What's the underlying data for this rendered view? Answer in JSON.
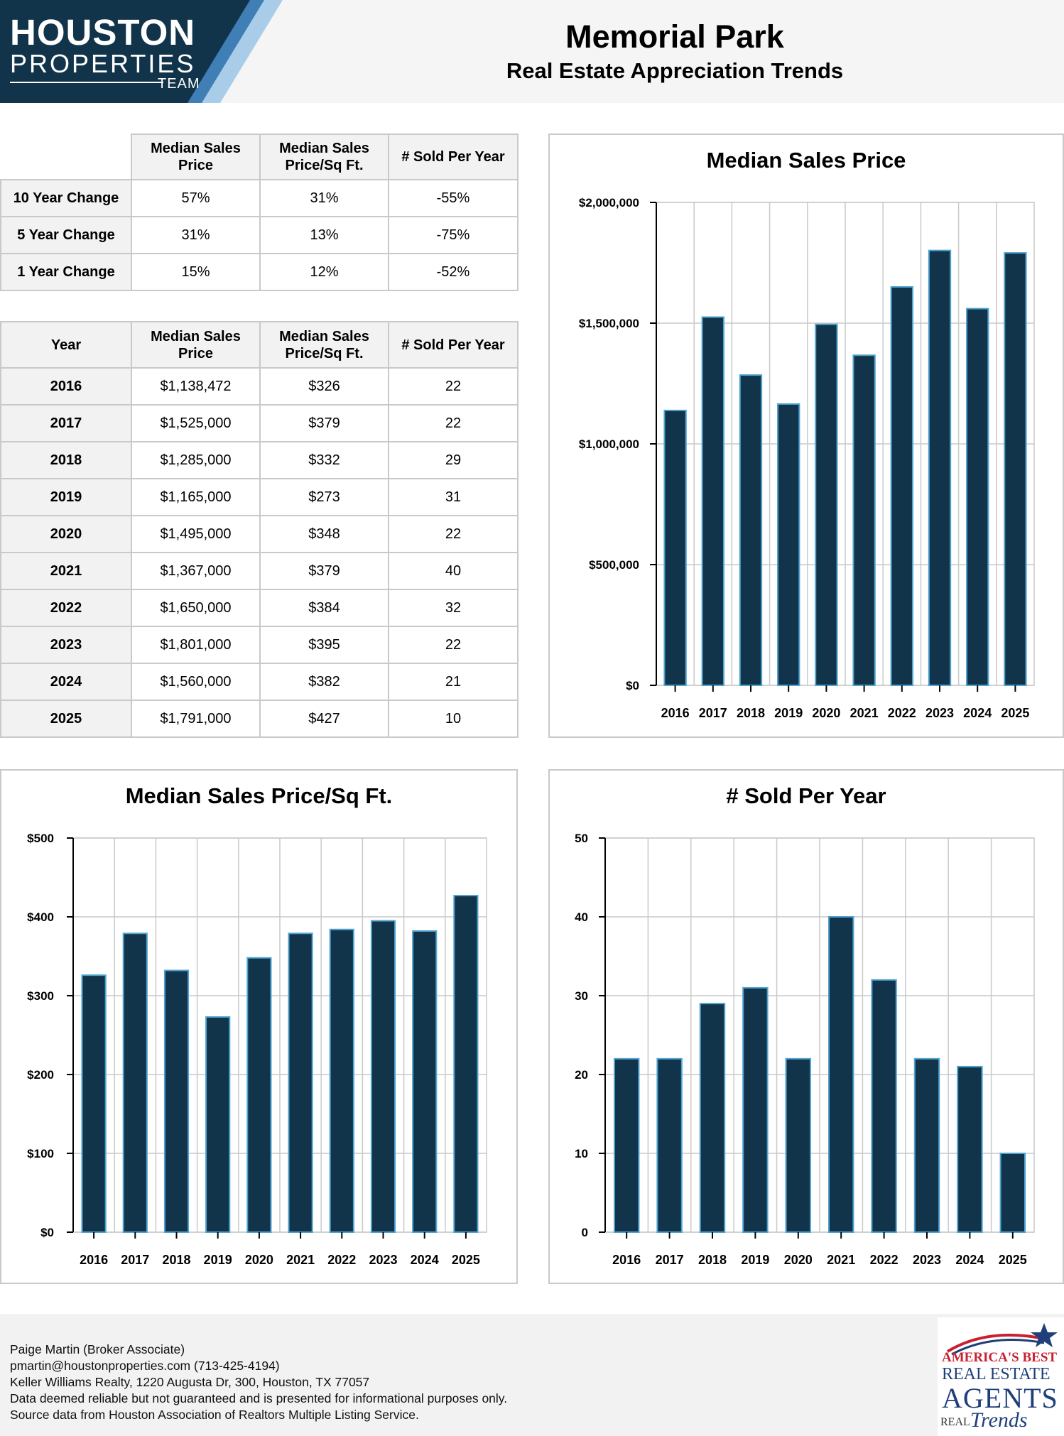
{
  "header": {
    "logo": {
      "line1": "HOUSTON",
      "line2": "PROPERTIES",
      "line3": "TEAM"
    },
    "title": "Memorial Park",
    "subtitle": "Real Estate Appreciation Trends"
  },
  "colors": {
    "bar_fill": "#12344b",
    "bar_edge": "#4fa3cf",
    "logo_navy": "#12344b",
    "logo_light": "#a9cde9"
  },
  "change_table": {
    "columns": [
      "Median Sales Price",
      "Median Sales Price/Sq Ft.",
      "# Sold Per Year"
    ],
    "rows": [
      {
        "label": "10 Year Change",
        "values": [
          "57%",
          "31%",
          "-55%"
        ]
      },
      {
        "label": "5 Year Change",
        "values": [
          "31%",
          "13%",
          "-75%"
        ]
      },
      {
        "label": "1 Year Change",
        "values": [
          "15%",
          "12%",
          "-52%"
        ]
      }
    ]
  },
  "year_table": {
    "columns": [
      "Year",
      "Median Sales Price",
      "Median Sales Price/Sq Ft.",
      "# Sold Per Year"
    ],
    "rows": [
      [
        "2016",
        "$1,138,472",
        "$326",
        "22"
      ],
      [
        "2017",
        "$1,525,000",
        "$379",
        "22"
      ],
      [
        "2018",
        "$1,285,000",
        "$332",
        "29"
      ],
      [
        "2019",
        "$1,165,000",
        "$273",
        "31"
      ],
      [
        "2020",
        "$1,495,000",
        "$348",
        "22"
      ],
      [
        "2021",
        "$1,367,000",
        "$379",
        "40"
      ],
      [
        "2022",
        "$1,650,000",
        "$384",
        "32"
      ],
      [
        "2023",
        "$1,801,000",
        "$395",
        "22"
      ],
      [
        "2024",
        "$1,560,000",
        "$382",
        "21"
      ],
      [
        "2025",
        "$1,791,000",
        "$427",
        "10"
      ]
    ]
  },
  "chart_data": [
    {
      "id": "price",
      "type": "bar",
      "title": "Median Sales Price",
      "categories": [
        "2016",
        "2017",
        "2018",
        "2019",
        "2020",
        "2021",
        "2022",
        "2023",
        "2024",
        "2025"
      ],
      "values": [
        1138472,
        1525000,
        1285000,
        1165000,
        1495000,
        1367000,
        1650000,
        1801000,
        1560000,
        1791000
      ],
      "ylim": [
        0,
        2000000
      ],
      "yticks": [
        0,
        500000,
        1000000,
        1500000,
        2000000
      ],
      "ytick_labels": [
        "$0",
        "$500,000",
        "$1,000,000",
        "$1,500,000",
        "$2,000,000"
      ],
      "grid": true
    },
    {
      "id": "ppsf",
      "type": "bar",
      "title": "Median Sales Price/Sq Ft.",
      "categories": [
        "2016",
        "2017",
        "2018",
        "2019",
        "2020",
        "2021",
        "2022",
        "2023",
        "2024",
        "2025"
      ],
      "values": [
        326,
        379,
        332,
        273,
        348,
        379,
        384,
        395,
        382,
        427
      ],
      "ylim": [
        0,
        500
      ],
      "yticks": [
        0,
        100,
        200,
        300,
        400,
        500
      ],
      "ytick_labels": [
        "$0",
        "$100",
        "$200",
        "$300",
        "$400",
        "$500"
      ],
      "grid": true
    },
    {
      "id": "sold",
      "type": "bar",
      "title": "# Sold Per Year",
      "categories": [
        "2016",
        "2017",
        "2018",
        "2019",
        "2020",
        "2021",
        "2022",
        "2023",
        "2024",
        "2025"
      ],
      "values": [
        22,
        22,
        29,
        31,
        22,
        40,
        32,
        22,
        21,
        10
      ],
      "ylim": [
        0,
        50
      ],
      "yticks": [
        0,
        10,
        20,
        30,
        40,
        50
      ],
      "ytick_labels": [
        "0",
        "10",
        "20",
        "30",
        "40",
        "50"
      ],
      "grid": true
    }
  ],
  "footer": {
    "lines": [
      "Paige Martin (Broker Associate)",
      "pmartin@houstonproperties.com (713-425-4194)",
      "Keller Williams Realty, 1220 Augusta Dr, 300, Houston, TX 77057",
      "Data deemed reliable but not guaranteed and is presented for informational purposes only.",
      "Source data from Houston Association of Realtors Multiple Listing Service."
    ],
    "badge": {
      "line1": "AMERICA'S BEST",
      "line2": "REAL ESTATE",
      "line3": "AGENTS",
      "line4": "REAL",
      "line5": "Trends"
    }
  }
}
